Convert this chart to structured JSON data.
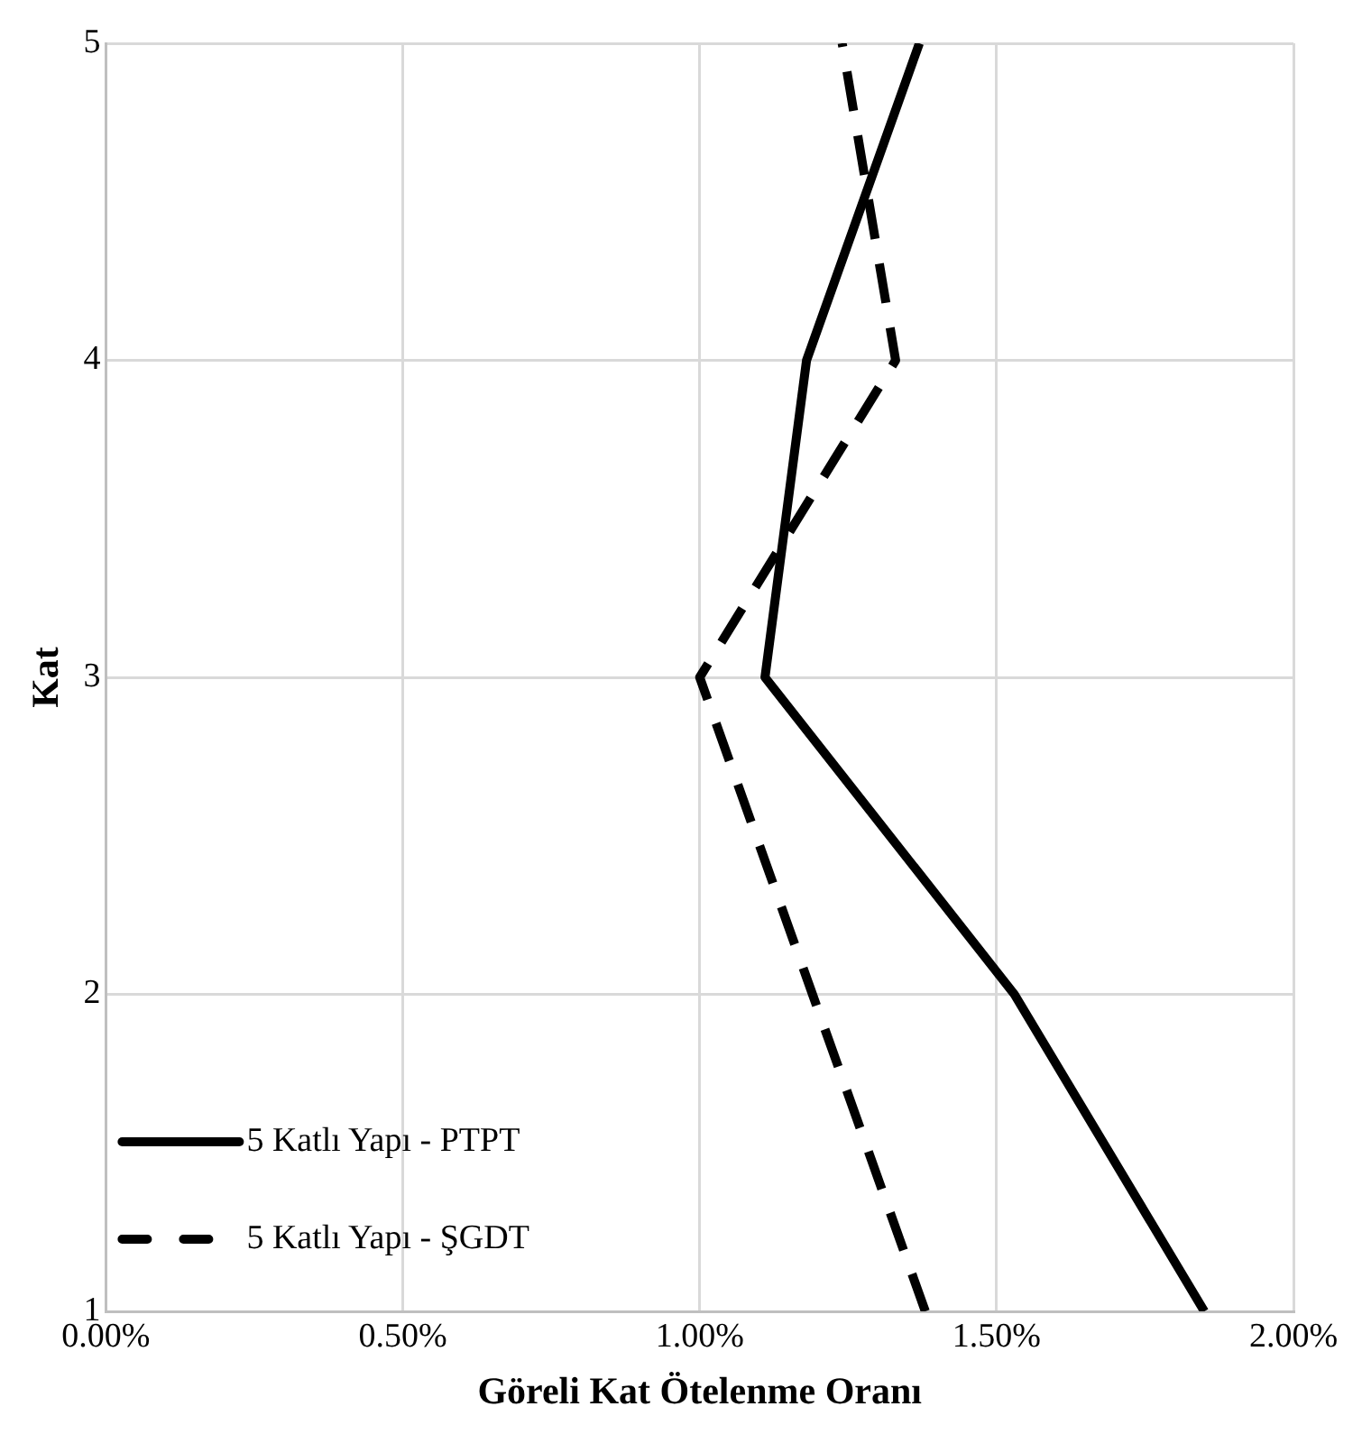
{
  "chart_data": {
    "type": "line",
    "xlabel": "Göreli Kat Ötelenme Oranı",
    "ylabel": "Kat",
    "xlim": [
      0,
      2
    ],
    "xticks": [
      {
        "value": 0,
        "label": "0.00%"
      },
      {
        "value": 0.5,
        "label": "0.50%"
      },
      {
        "value": 1,
        "label": "1.00%"
      },
      {
        "value": 1.5,
        "label": "1.50%"
      },
      {
        "value": 2,
        "label": "2.00%"
      }
    ],
    "ylim": [
      1,
      5
    ],
    "yticks": [
      1,
      2,
      3,
      4,
      5
    ],
    "series": [
      {
        "name": "5 Katlı Yapı - PTPT",
        "color": "#000000",
        "line_style": "solid",
        "x": [
          1.85,
          1.53,
          1.11,
          1.18,
          1.37
        ],
        "values": [
          1,
          2,
          3,
          4,
          5
        ]
      },
      {
        "name": "5 Katlı Yapı - ŞGDT",
        "color": "#000000",
        "line_style": "dashed",
        "x": [
          1.38,
          1.19,
          1.0,
          1.33,
          1.24
        ],
        "values": [
          1,
          2,
          3,
          4,
          5
        ]
      }
    ],
    "grid": true,
    "legend": "bottom left",
    "marker": "none"
  }
}
